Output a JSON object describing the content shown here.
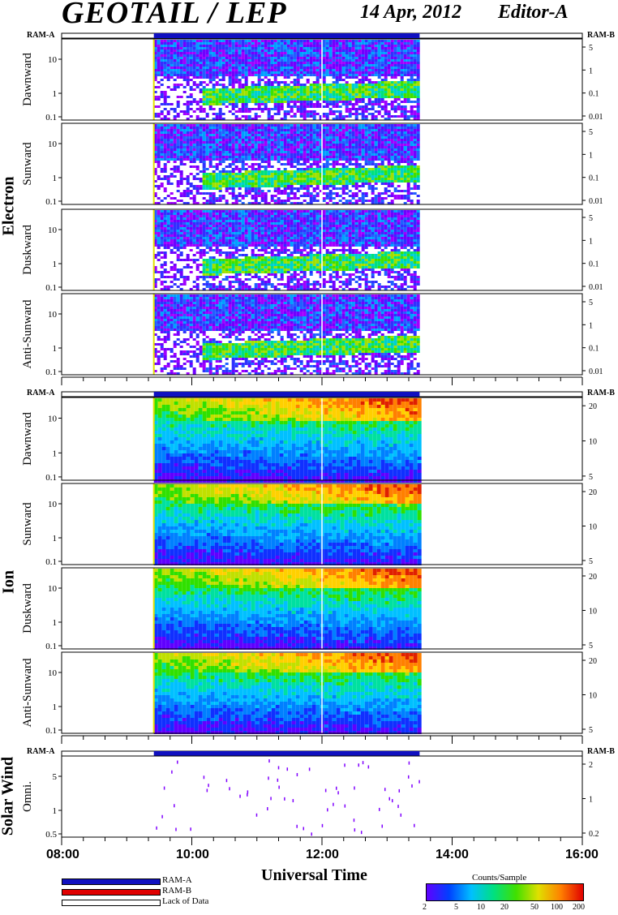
{
  "header": {
    "title": "GEOTAIL / LEP",
    "date": "14 Apr, 2012",
    "editor": "Editor-A"
  },
  "sections": {
    "electron": "Electron",
    "ion": "Ion",
    "solar_wind": "Solar Wind"
  },
  "ram_labels": {
    "a": "RAM-A",
    "b": "RAM-B"
  },
  "legend": {
    "ram_a": "RAM-A",
    "ram_b": "RAM-B",
    "lack": "Lack of Data"
  },
  "colors": {
    "ram_a": "#1010c0",
    "ram_b": "#e00000"
  },
  "colorbar": {
    "title": "Counts/Sample",
    "ticks": [
      "2",
      "5",
      "10",
      "20",
      "50",
      "100",
      "200"
    ]
  },
  "chart_data": {
    "type": "heatmap",
    "xlabel": "Universal Time",
    "x_ticks": [
      "08:00",
      "10:00",
      "12:00",
      "14:00",
      "16:00"
    ],
    "xlim": [
      "08:00",
      "16:00"
    ],
    "data_start": "09:25",
    "data_end": "13:30",
    "gap_time": "12:00",
    "panels": [
      {
        "group": "electron",
        "name": "Dawnward",
        "left_ticks": [
          "10",
          "1",
          "0.1"
        ],
        "right_ticks": [
          "5",
          "1",
          "0.1",
          "0.01"
        ]
      },
      {
        "group": "electron",
        "name": "Sunward",
        "left_ticks": [
          "10",
          "1",
          "0.1"
        ],
        "right_ticks": [
          "5",
          "1",
          "0.1",
          "0.01"
        ]
      },
      {
        "group": "electron",
        "name": "Duskward",
        "left_ticks": [
          "10",
          "1",
          "0.1"
        ],
        "right_ticks": [
          "5",
          "1",
          "0.1",
          "0.01"
        ]
      },
      {
        "group": "electron",
        "name": "Anti-Sunward",
        "left_ticks": [
          "10",
          "1",
          "0.1"
        ],
        "right_ticks": [
          "5",
          "1",
          "0.1",
          "0.01"
        ]
      },
      {
        "group": "ion",
        "name": "Dawnward",
        "left_ticks": [
          "10",
          "1",
          "0.1"
        ],
        "right_ticks": [
          "20",
          "10",
          "5"
        ]
      },
      {
        "group": "ion",
        "name": "Sunward",
        "left_ticks": [
          "10",
          "1",
          "0.1"
        ],
        "right_ticks": [
          "20",
          "10",
          "5"
        ]
      },
      {
        "group": "ion",
        "name": "Duskward",
        "left_ticks": [
          "10",
          "1",
          "0.1"
        ],
        "right_ticks": [
          "20",
          "10",
          "5"
        ]
      },
      {
        "group": "ion",
        "name": "Anti-Sunward",
        "left_ticks": [
          "10",
          "1",
          "0.1"
        ],
        "right_ticks": [
          "20",
          "10",
          "5"
        ]
      },
      {
        "group": "solar_wind",
        "name": "Omni.",
        "left_ticks": [
          "5",
          "1",
          "0.5"
        ],
        "right_ticks": [
          "2",
          "1",
          "0.2"
        ]
      }
    ]
  }
}
